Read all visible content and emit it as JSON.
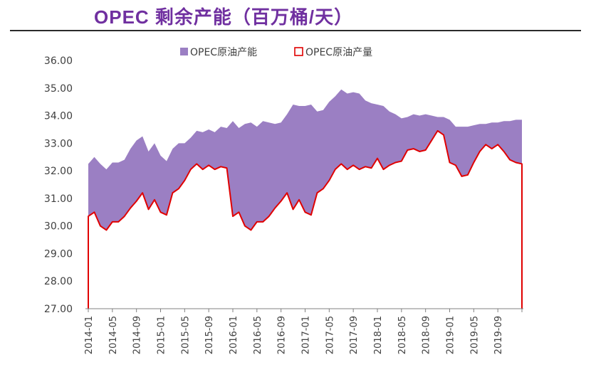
{
  "title": "OPEC 剩余产能（百万桶/天）",
  "colors": {
    "title": "#7030A0",
    "capacity_fill": "#9B7FC3",
    "production_line": "#E00000"
  },
  "chart_data": {
    "type": "area",
    "title": "OPEC 剩余产能（百万桶/天）",
    "legend_position": "top-center",
    "ylim": [
      27.0,
      36.0
    ],
    "yticks": [
      "36.00",
      "35.00",
      "34.00",
      "33.00",
      "32.00",
      "31.00",
      "30.00",
      "29.00",
      "28.00",
      "27.00"
    ],
    "x_start": "2014-01",
    "x_tick_labels": [
      "2014-01",
      "2014-05",
      "2014-09",
      "2015-01",
      "2015-05",
      "2015-09",
      "2016-01",
      "2016-05",
      "2016-09",
      "2017-01",
      "2017-05",
      "2017-09",
      "2018-01",
      "2018-05",
      "2018-09",
      "2019-01",
      "2019-05",
      "2019-09"
    ],
    "series": [
      {
        "name": "OPEC原油产能",
        "style": "filled-area",
        "values": [
          32.25,
          32.5,
          32.25,
          32.05,
          32.3,
          32.3,
          32.4,
          32.8,
          33.1,
          33.25,
          32.7,
          33.0,
          32.55,
          32.35,
          32.8,
          33.0,
          33.0,
          33.2,
          33.45,
          33.4,
          33.5,
          33.4,
          33.6,
          33.55,
          33.8,
          33.55,
          33.7,
          33.75,
          33.6,
          33.8,
          33.75,
          33.7,
          33.75,
          34.05,
          34.4,
          34.35,
          34.35,
          34.4,
          34.15,
          34.2,
          34.5,
          34.7,
          34.95,
          34.8,
          34.85,
          34.8,
          34.55,
          34.45,
          34.4,
          34.35,
          34.15,
          34.05,
          33.9,
          33.95,
          34.05,
          34.0,
          34.05,
          34.0,
          33.95,
          33.95,
          33.85,
          33.6,
          33.6,
          33.6,
          33.65,
          33.7,
          33.7,
          33.75,
          33.75,
          33.8,
          33.8,
          33.85,
          33.85
        ]
      },
      {
        "name": "OPEC原油产量",
        "style": "line",
        "values": [
          30.35,
          30.5,
          30.0,
          29.85,
          30.15,
          30.15,
          30.35,
          30.65,
          30.9,
          31.2,
          30.6,
          30.95,
          30.5,
          30.4,
          31.2,
          31.35,
          31.65,
          32.05,
          32.25,
          32.05,
          32.2,
          32.05,
          32.15,
          32.1,
          30.35,
          30.5,
          30.0,
          29.85,
          30.15,
          30.15,
          30.35,
          30.65,
          30.9,
          31.2,
          30.6,
          30.95,
          30.5,
          30.4,
          31.2,
          31.35,
          31.65,
          32.05,
          32.25,
          32.05,
          32.2,
          32.05,
          32.15,
          32.1,
          32.45,
          32.05,
          32.2,
          32.3,
          32.35,
          32.75,
          32.8,
          32.7,
          32.75,
          33.1,
          33.45,
          33.3,
          32.3,
          32.2,
          31.8,
          31.85,
          32.3,
          32.7,
          32.95,
          32.8,
          32.95,
          32.7,
          32.4,
          32.3,
          32.25
        ]
      }
    ]
  }
}
